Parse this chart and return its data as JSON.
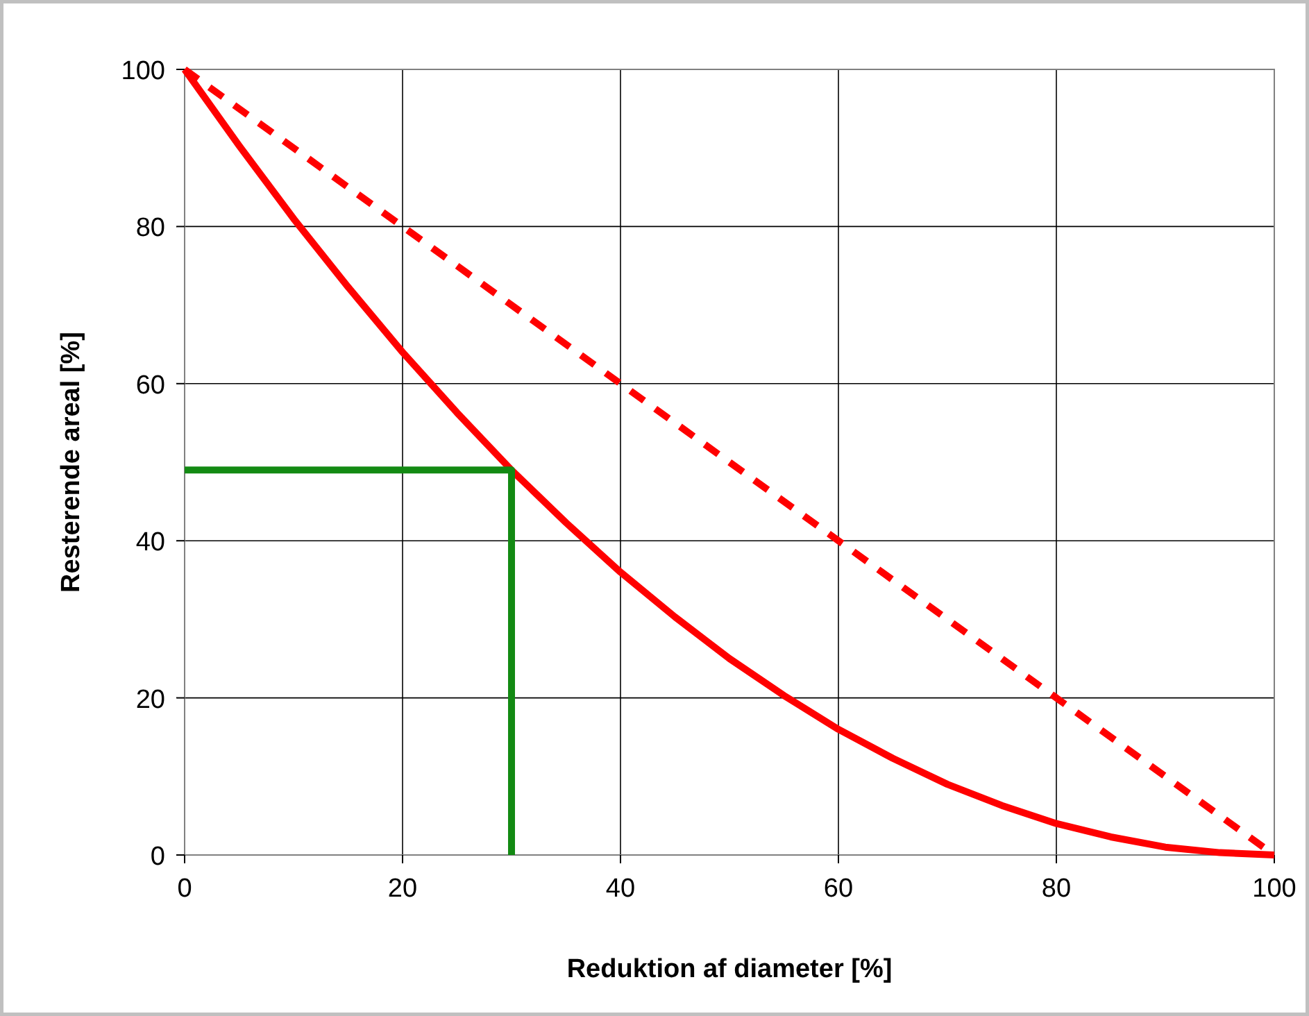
{
  "chart_data": {
    "type": "line",
    "xlabel": "Reduktion af diameter [%]",
    "ylabel": "Resterende areal [%]",
    "xlim": [
      0,
      100
    ],
    "ylim": [
      0,
      100
    ],
    "xticks": [
      0,
      20,
      40,
      60,
      80,
      100
    ],
    "yticks": [
      0,
      20,
      40,
      60,
      80,
      100
    ],
    "grid": true,
    "series": [
      {
        "color": "#ff0000",
        "line_style": "solid",
        "x": [
          0,
          5,
          10,
          15,
          20,
          25,
          30,
          35,
          40,
          45,
          50,
          55,
          60,
          65,
          70,
          75,
          80,
          85,
          90,
          95,
          100
        ],
        "values": [
          100,
          90.3,
          81,
          72.3,
          64,
          56.3,
          49,
          42.3,
          36,
          30.3,
          25,
          20.3,
          16,
          12.3,
          9,
          6.3,
          4,
          2.3,
          1,
          0.3,
          0
        ]
      },
      {
        "color": "#ff0000",
        "line_style": "dashed",
        "x": [
          0,
          100
        ],
        "values": [
          100,
          0
        ]
      },
      {
        "color": "#138a13",
        "line_style": "solid",
        "x": [
          0,
          30,
          30
        ],
        "values": [
          49,
          49,
          0
        ]
      }
    ]
  }
}
